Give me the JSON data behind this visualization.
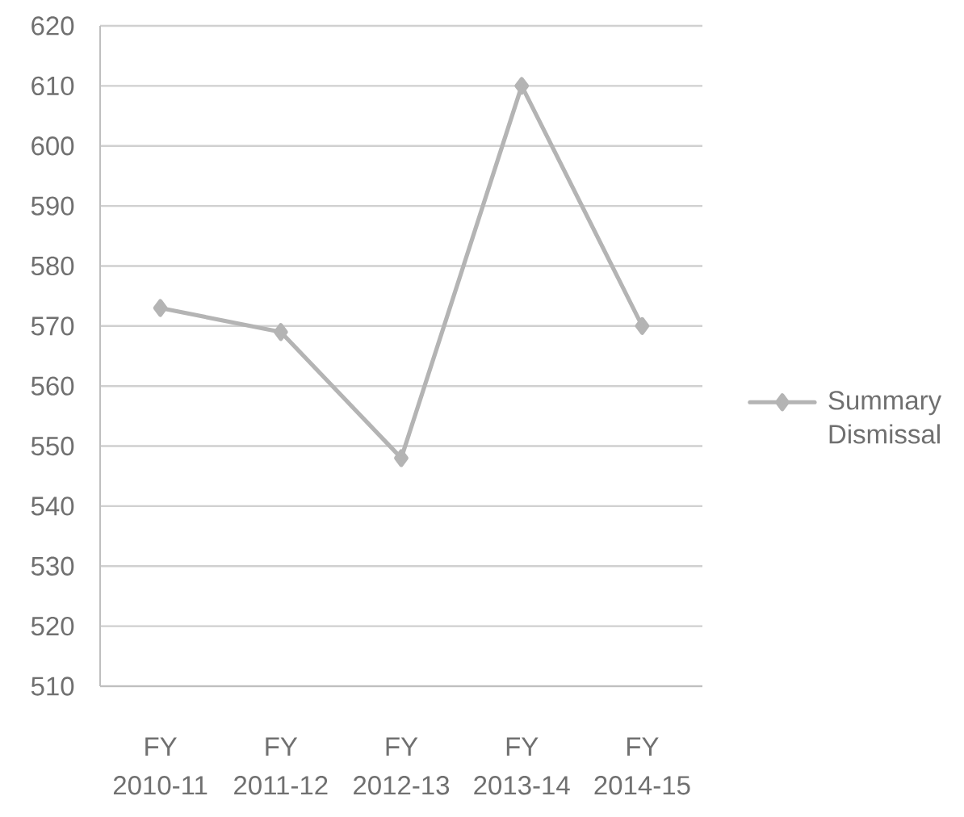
{
  "chart_data": {
    "type": "line",
    "categories": [
      "FY 2010-11",
      "FY 2011-12",
      "FY 2012-13",
      "FY 2013-14",
      "FY 2014-15"
    ],
    "series": [
      {
        "name": "Summary Dismissal",
        "color": "#b4b4b4",
        "values": [
          573,
          569,
          548,
          610,
          570
        ]
      }
    ],
    "ylim": [
      510,
      620
    ],
    "yticks": [
      510,
      520,
      530,
      540,
      550,
      560,
      570,
      580,
      590,
      600,
      610,
      620
    ],
    "grid": "y",
    "legend": "right",
    "marker": "diamond",
    "line_style": "solid"
  }
}
